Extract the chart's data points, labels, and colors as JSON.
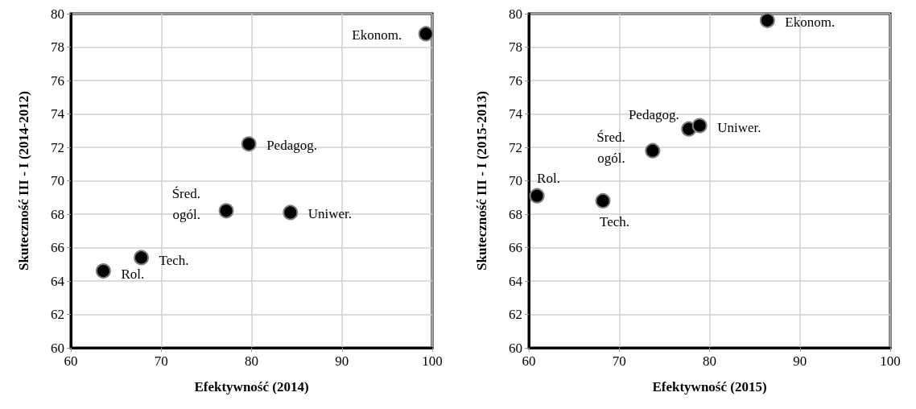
{
  "chart_data": [
    {
      "type": "scatter",
      "xlabel": "Efektywność (2014)",
      "ylabel": "Skuteczność III - I (2014-2012)",
      "x": [
        63.6,
        67.8,
        77.2,
        84.3,
        79.7,
        99.3
      ],
      "values": [
        64.6,
        65.4,
        68.2,
        68.1,
        72.2,
        78.8
      ],
      "color": "#000000",
      "marker": "circle",
      "xlim": [
        60,
        100
      ],
      "xticks": [
        60,
        70,
        80,
        90,
        100
      ],
      "ylim": [
        60,
        80
      ],
      "yticks": [
        60,
        62,
        64,
        66,
        68,
        70,
        72,
        74,
        76,
        78,
        80
      ],
      "grid": true,
      "annotations": [
        {
          "text": "Rol.",
          "x": 63.6,
          "y": 64.6
        },
        {
          "text": "Tech.",
          "x": 67.8,
          "y": 65.4
        },
        {
          "text": "Śred.\nogól.",
          "x": 77.2,
          "y": 68.2
        },
        {
          "text": "Uniwer.",
          "x": 84.3,
          "y": 68.1
        },
        {
          "text": "Pedagog.",
          "x": 79.7,
          "y": 72.2
        },
        {
          "text": "Ekonom.",
          "x": 99.3,
          "y": 78.8
        }
      ]
    },
    {
      "type": "scatter",
      "xlabel": "Efektywność (2015)",
      "ylabel": "Skuteczność III - I (2015-2013)",
      "x": [
        60.9,
        68.2,
        73.7,
        77.7,
        78.9,
        86.4
      ],
      "values": [
        69.1,
        68.8,
        71.8,
        73.1,
        73.3,
        79.6
      ],
      "color": "#000000",
      "marker": "circle",
      "xlim": [
        60,
        100
      ],
      "xticks": [
        60,
        70,
        80,
        90,
        100
      ],
      "ylim": [
        60,
        80
      ],
      "yticks": [
        60,
        62,
        64,
        66,
        68,
        70,
        72,
        74,
        76,
        78,
        80
      ],
      "grid": true,
      "annotations": [
        {
          "text": "Rol.",
          "x": 60.9,
          "y": 69.1
        },
        {
          "text": "Tech.",
          "x": 68.2,
          "y": 68.8
        },
        {
          "text": "Śred.\nogól.",
          "x": 73.7,
          "y": 71.8
        },
        {
          "text": "Pedagog.",
          "x": 77.7,
          "y": 73.1
        },
        {
          "text": "Uniwer.",
          "x": 78.9,
          "y": 73.3
        },
        {
          "text": "Ekonom.",
          "x": 86.4,
          "y": 79.6
        }
      ]
    }
  ]
}
